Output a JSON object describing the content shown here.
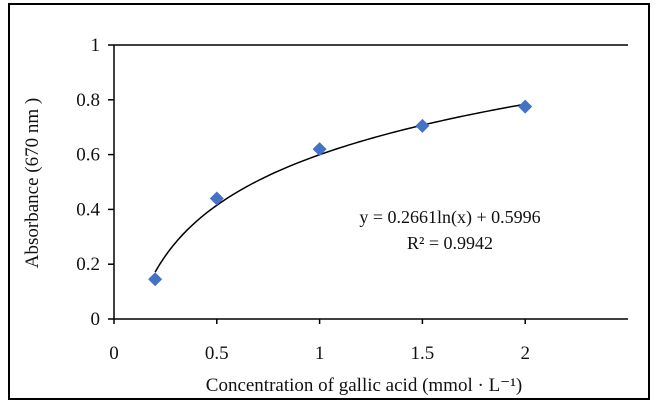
{
  "chart_data": {
    "type": "scatter",
    "xlabel": "Concentration of gallic  acid (mmol · L⁻¹)",
    "ylabel": "Absorbance (670 nm )",
    "xlim": [
      0,
      2.5
    ],
    "ylim": [
      0,
      1
    ],
    "xticks": [
      "0",
      "0.5",
      "1",
      "1.5",
      "2"
    ],
    "yticks": [
      "0",
      "0.2",
      "0.4",
      "0.6",
      "0.8",
      "1"
    ],
    "points": [
      {
        "x": 0.2,
        "y": 0.145
      },
      {
        "x": 0.5,
        "y": 0.44
      },
      {
        "x": 1.0,
        "y": 0.62
      },
      {
        "x": 1.5,
        "y": 0.705
      },
      {
        "x": 2.0,
        "y": 0.775
      }
    ],
    "trendline": {
      "type": "logarithmic",
      "a": 0.2661,
      "b": 0.5996,
      "xmin": 0.2,
      "xmax": 2.0
    },
    "annotations": {
      "equation": "y = 0.2661ln(x) + 0.5996",
      "r2": "R² = 0.9942"
    },
    "marker_color": "#4472c4",
    "line_color": "#000000",
    "grid": false,
    "legend": "none"
  }
}
